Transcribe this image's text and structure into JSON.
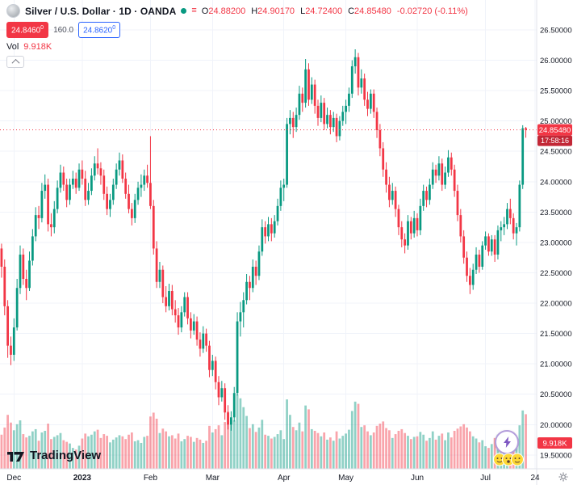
{
  "header": {
    "symbol_title": "Silver / U.S. Dollar · 1D · OANDA",
    "ohlc": {
      "o_label": "O",
      "o": "24.88200",
      "h_label": "H",
      "h": "24.90170",
      "l_label": "L",
      "l": "24.72400",
      "c_label": "C",
      "c": "24.85480",
      "change": "-0.02720 (-0.11%)"
    },
    "sell_price": "24.8460",
    "sell_sup": "0",
    "spread": "160.0",
    "buy_price": "24.8620",
    "buy_sup": "0",
    "vol_label": "Vol",
    "vol_value": "9.918K"
  },
  "footer": {
    "logo_text": "TradingView"
  },
  "colors": {
    "up": "#089981",
    "down": "#f23645",
    "buy_blue": "#2962ff"
  },
  "chart_data": {
    "type": "candlestick",
    "title": "Silver / U.S. Dollar · 1D · OANDA",
    "legend_position": "top-left",
    "grid": true,
    "up_color": "#089981",
    "down_color": "#f23645",
    "y_axis": {
      "min": 19.272,
      "max": 26.992,
      "tick_min": 19.5,
      "tick_max": 26.5,
      "tick_step": 0.5,
      "decimals": 5
    },
    "x_ticks": [
      {
        "label": "Dec",
        "i": 4
      },
      {
        "label": "2023",
        "i": 26,
        "bold": true
      },
      {
        "label": "Feb",
        "i": 48
      },
      {
        "label": "Mar",
        "i": 68
      },
      {
        "label": "Apr",
        "i": 91
      },
      {
        "label": "May",
        "i": 111
      },
      {
        "label": "Jun",
        "i": 134
      },
      {
        "label": "Jul",
        "i": 156
      },
      {
        "label": "24",
        "i": 172
      }
    ],
    "last_price": 24.8548,
    "last_price_label": "24.85480",
    "countdown": "17:58:16",
    "last_volume_label": "9.918K",
    "candles": [
      [
        22.9,
        22.98,
        22.42,
        22.6,
        6.2
      ],
      [
        22.6,
        22.72,
        21.8,
        21.95,
        7.5
      ],
      [
        21.95,
        22.05,
        21.1,
        21.3,
        9.8
      ],
      [
        21.3,
        21.45,
        20.98,
        21.15,
        8.4
      ],
      [
        21.15,
        21.75,
        21.05,
        21.6,
        7.0
      ],
      [
        21.6,
        22.4,
        21.55,
        22.25,
        8.1
      ],
      [
        22.25,
        22.95,
        22.15,
        22.8,
        8.8
      ],
      [
        22.8,
        22.9,
        22.3,
        22.4,
        6.3
      ],
      [
        22.4,
        22.55,
        22.05,
        22.25,
        5.7
      ],
      [
        22.25,
        22.85,
        22.2,
        22.7,
        6.0
      ],
      [
        22.7,
        23.22,
        22.62,
        23.1,
        6.8
      ],
      [
        23.1,
        23.58,
        23.02,
        23.45,
        7.2
      ],
      [
        23.45,
        23.6,
        23.22,
        23.4,
        5.1
      ],
      [
        23.4,
        23.98,
        23.33,
        23.85,
        6.6
      ],
      [
        23.85,
        24.12,
        23.72,
        23.95,
        6.9
      ],
      [
        23.95,
        24.05,
        23.18,
        23.3,
        8.2
      ],
      [
        23.3,
        23.48,
        23.1,
        23.25,
        5.4
      ],
      [
        23.25,
        23.68,
        23.15,
        23.55,
        5.8
      ],
      [
        23.55,
        24.02,
        23.48,
        23.9,
        6.1
      ],
      [
        23.9,
        24.28,
        23.82,
        24.15,
        6.5
      ],
      [
        24.15,
        24.25,
        23.85,
        23.95,
        5.2
      ],
      [
        23.95,
        24.05,
        23.58,
        23.7,
        4.9
      ],
      [
        23.7,
        24.05,
        23.62,
        23.95,
        4.6
      ],
      [
        23.95,
        24.18,
        23.88,
        24.05,
        3.8
      ],
      [
        24.05,
        24.15,
        23.8,
        23.9,
        3.5
      ],
      [
        23.9,
        24.3,
        23.85,
        24.2,
        4.2
      ],
      [
        24.2,
        24.35,
        23.95,
        24.05,
        5.5
      ],
      [
        24.05,
        24.18,
        23.6,
        23.7,
        6.4
      ],
      [
        23.7,
        23.98,
        23.62,
        23.85,
        5.9
      ],
      [
        23.85,
        24.22,
        23.78,
        24.1,
        6.2
      ],
      [
        24.1,
        24.42,
        24.02,
        24.3,
        6.8
      ],
      [
        24.3,
        24.55,
        24.12,
        24.22,
        7.1
      ],
      [
        24.22,
        24.32,
        23.95,
        24.1,
        5.6
      ],
      [
        24.1,
        24.2,
        23.7,
        23.8,
        6.3
      ],
      [
        23.8,
        23.92,
        23.45,
        23.55,
        6.0
      ],
      [
        23.55,
        23.8,
        23.42,
        23.7,
        4.8
      ],
      [
        23.7,
        24.05,
        23.62,
        23.95,
        5.3
      ],
      [
        23.95,
        24.3,
        23.88,
        24.2,
        5.7
      ],
      [
        24.2,
        24.48,
        24.1,
        24.35,
        6.1
      ],
      [
        24.35,
        24.45,
        23.98,
        24.05,
        5.9
      ],
      [
        24.05,
        24.15,
        23.72,
        23.8,
        5.4
      ],
      [
        23.8,
        23.95,
        23.48,
        23.55,
        6.2
      ],
      [
        23.55,
        23.65,
        23.28,
        23.4,
        6.6
      ],
      [
        23.4,
        23.8,
        23.32,
        23.7,
        5.0
      ],
      [
        23.7,
        24.0,
        23.62,
        23.9,
        5.2
      ],
      [
        23.9,
        24.12,
        23.75,
        23.95,
        4.7
      ],
      [
        23.95,
        24.2,
        23.85,
        24.1,
        5.8
      ],
      [
        24.1,
        24.28,
        23.9,
        23.98,
        6.0
      ],
      [
        23.98,
        24.75,
        23.55,
        23.6,
        9.5
      ],
      [
        23.6,
        23.7,
        22.8,
        22.9,
        10.2
      ],
      [
        22.9,
        23.02,
        22.25,
        22.35,
        9.1
      ],
      [
        22.35,
        22.68,
        22.25,
        22.55,
        6.5
      ],
      [
        22.55,
        22.62,
        22.0,
        22.1,
        7.3
      ],
      [
        22.1,
        22.28,
        21.85,
        21.95,
        6.8
      ],
      [
        21.95,
        22.32,
        21.88,
        22.2,
        5.9
      ],
      [
        22.2,
        22.3,
        21.8,
        21.9,
        6.1
      ],
      [
        21.9,
        22.05,
        21.68,
        21.8,
        5.5
      ],
      [
        21.8,
        21.92,
        21.48,
        21.6,
        6.4
      ],
      [
        21.6,
        21.95,
        21.52,
        21.85,
        5.0
      ],
      [
        21.85,
        22.18,
        21.78,
        22.1,
        5.4
      ],
      [
        22.1,
        22.18,
        21.65,
        21.75,
        6.0
      ],
      [
        21.75,
        21.85,
        21.42,
        21.55,
        5.8
      ],
      [
        21.55,
        21.82,
        21.48,
        21.7,
        4.9
      ],
      [
        21.7,
        21.78,
        21.3,
        21.4,
        5.6
      ],
      [
        21.4,
        21.52,
        21.12,
        21.25,
        5.3
      ],
      [
        21.25,
        21.62,
        21.18,
        21.5,
        4.7
      ],
      [
        21.5,
        21.58,
        21.2,
        21.3,
        5.1
      ],
      [
        21.3,
        21.38,
        20.78,
        20.9,
        7.8
      ],
      [
        20.9,
        21.15,
        20.8,
        21.05,
        6.6
      ],
      [
        21.05,
        21.12,
        20.58,
        20.7,
        7.2
      ],
      [
        20.7,
        20.8,
        20.32,
        20.45,
        7.9
      ],
      [
        20.45,
        20.72,
        20.38,
        20.6,
        6.1
      ],
      [
        20.6,
        20.68,
        20.08,
        20.2,
        8.5
      ],
      [
        20.2,
        20.32,
        19.92,
        20.0,
        10.4
      ],
      [
        20.0,
        20.22,
        19.9,
        20.12,
        9.0
      ],
      [
        20.12,
        20.62,
        20.05,
        20.52,
        8.8
      ],
      [
        20.52,
        21.85,
        20.48,
        21.7,
        13.5
      ],
      [
        21.7,
        22.02,
        21.45,
        21.85,
        12.8
      ],
      [
        21.85,
        22.18,
        21.6,
        22.05,
        11.2
      ],
      [
        22.05,
        22.48,
        21.98,
        22.35,
        9.6
      ],
      [
        22.35,
        22.45,
        22.05,
        22.25,
        7.4
      ],
      [
        22.25,
        22.72,
        22.18,
        22.6,
        8.1
      ],
      [
        22.6,
        22.7,
        22.3,
        22.45,
        6.7
      ],
      [
        22.45,
        22.95,
        22.38,
        22.85,
        7.5
      ],
      [
        22.85,
        23.38,
        22.78,
        23.25,
        8.9
      ],
      [
        23.25,
        23.35,
        22.98,
        23.1,
        6.2
      ],
      [
        23.1,
        23.42,
        23.02,
        23.3,
        6.0
      ],
      [
        23.3,
        23.4,
        23.02,
        23.15,
        5.5
      ],
      [
        23.15,
        23.45,
        23.08,
        23.35,
        5.8
      ],
      [
        23.35,
        23.72,
        23.28,
        23.6,
        6.3
      ],
      [
        23.6,
        24.02,
        23.52,
        23.9,
        7.0
      ],
      [
        23.9,
        24.05,
        23.68,
        23.95,
        5.4
      ],
      [
        23.95,
        25.05,
        23.9,
        24.95,
        12.6
      ],
      [
        24.95,
        25.18,
        24.78,
        25.05,
        9.8
      ],
      [
        25.05,
        25.15,
        24.72,
        24.9,
        7.6
      ],
      [
        24.9,
        25.22,
        24.82,
        25.1,
        7.0
      ],
      [
        25.1,
        25.58,
        25.02,
        25.45,
        8.4
      ],
      [
        25.45,
        25.55,
        25.15,
        25.3,
        6.8
      ],
      [
        25.3,
        26.02,
        25.22,
        25.85,
        11.5
      ],
      [
        25.85,
        25.95,
        25.25,
        25.35,
        10.8
      ],
      [
        25.35,
        25.72,
        25.28,
        25.6,
        7.2
      ],
      [
        25.6,
        25.68,
        25.12,
        25.25,
        6.9
      ],
      [
        25.25,
        25.35,
        24.92,
        25.05,
        6.5
      ],
      [
        25.05,
        25.42,
        24.98,
        25.3,
        5.9
      ],
      [
        25.3,
        25.38,
        24.85,
        24.95,
        6.6
      ],
      [
        24.95,
        25.22,
        24.88,
        25.1,
        5.3
      ],
      [
        25.1,
        25.18,
        24.78,
        24.9,
        5.7
      ],
      [
        24.9,
        25.15,
        24.82,
        25.05,
        5.1
      ],
      [
        25.05,
        25.12,
        24.65,
        24.75,
        6.8
      ],
      [
        24.75,
        25.08,
        24.68,
        25.0,
        5.5
      ],
      [
        25.0,
        25.25,
        24.92,
        25.15,
        6.0
      ],
      [
        25.15,
        25.35,
        24.95,
        25.25,
        6.4
      ],
      [
        25.25,
        25.55,
        25.15,
        25.45,
        7.1
      ],
      [
        25.45,
        26.0,
        25.38,
        25.9,
        10.5
      ],
      [
        25.9,
        26.18,
        25.78,
        26.05,
        12.2
      ],
      [
        26.05,
        26.12,
        25.42,
        25.55,
        11.8
      ],
      [
        25.55,
        25.85,
        25.45,
        25.7,
        7.6
      ],
      [
        25.7,
        25.78,
        25.25,
        25.35,
        7.9
      ],
      [
        25.35,
        25.48,
        25.08,
        25.2,
        6.8
      ],
      [
        25.2,
        25.52,
        25.12,
        25.45,
        6.1
      ],
      [
        25.45,
        25.52,
        25.05,
        25.15,
        6.6
      ],
      [
        25.15,
        25.22,
        24.72,
        24.85,
        7.8
      ],
      [
        24.85,
        24.95,
        24.42,
        24.55,
        8.2
      ],
      [
        24.55,
        24.65,
        24.08,
        24.2,
        8.6
      ],
      [
        24.2,
        24.32,
        23.82,
        23.95,
        7.4
      ],
      [
        23.95,
        24.08,
        23.58,
        23.7,
        7.0
      ],
      [
        23.7,
        23.98,
        23.62,
        23.85,
        5.6
      ],
      [
        23.85,
        23.92,
        23.42,
        23.55,
        6.3
      ],
      [
        23.55,
        23.62,
        23.12,
        23.25,
        6.9
      ],
      [
        23.25,
        23.35,
        22.92,
        23.05,
        7.2
      ],
      [
        23.05,
        23.15,
        22.82,
        22.95,
        6.5
      ],
      [
        22.95,
        23.45,
        22.88,
        23.35,
        6.0
      ],
      [
        23.35,
        23.42,
        23.05,
        23.15,
        5.4
      ],
      [
        23.15,
        23.52,
        23.08,
        23.4,
        5.8
      ],
      [
        23.4,
        23.48,
        23.1,
        23.2,
        5.9
      ],
      [
        23.2,
        23.72,
        23.12,
        23.6,
        6.7
      ],
      [
        23.6,
        23.95,
        23.52,
        23.85,
        6.2
      ],
      [
        23.85,
        23.92,
        23.58,
        23.7,
        5.1
      ],
      [
        23.7,
        24.05,
        23.62,
        23.95,
        5.6
      ],
      [
        23.95,
        24.32,
        23.88,
        24.2,
        6.8
      ],
      [
        24.2,
        24.28,
        23.98,
        24.1,
        5.3
      ],
      [
        24.1,
        24.42,
        24.02,
        24.3,
        6.0
      ],
      [
        24.3,
        24.38,
        23.85,
        23.95,
        6.4
      ],
      [
        23.95,
        24.25,
        23.88,
        24.15,
        5.2
      ],
      [
        24.15,
        24.52,
        24.08,
        24.4,
        6.6
      ],
      [
        24.4,
        24.48,
        24.1,
        24.2,
        5.7
      ],
      [
        24.2,
        24.28,
        23.75,
        23.85,
        6.9
      ],
      [
        23.85,
        23.95,
        23.35,
        23.45,
        7.3
      ],
      [
        23.45,
        23.55,
        23.0,
        23.1,
        7.7
      ],
      [
        23.1,
        23.2,
        22.65,
        22.75,
        8.1
      ],
      [
        22.75,
        22.85,
        22.35,
        22.45,
        7.5
      ],
      [
        22.45,
        22.58,
        22.15,
        22.3,
        6.8
      ],
      [
        22.3,
        22.65,
        22.22,
        22.55,
        5.9
      ],
      [
        22.55,
        22.92,
        22.48,
        22.8,
        5.5
      ],
      [
        22.8,
        22.88,
        22.5,
        22.6,
        4.8
      ],
      [
        22.6,
        23.02,
        22.55,
        22.95,
        5.2
      ],
      [
        22.95,
        23.18,
        22.88,
        23.1,
        4.1
      ],
      [
        23.1,
        23.15,
        22.78,
        22.85,
        3.8
      ],
      [
        22.85,
        23.12,
        22.78,
        23.05,
        4.5
      ],
      [
        23.05,
        23.12,
        22.68,
        22.8,
        5.6
      ],
      [
        22.8,
        23.28,
        22.72,
        23.2,
        6.2
      ],
      [
        23.2,
        23.35,
        23.02,
        23.25,
        4.9
      ],
      [
        23.25,
        23.42,
        23.12,
        23.3,
        4.6
      ],
      [
        23.3,
        23.65,
        23.22,
        23.55,
        6.0
      ],
      [
        23.55,
        23.72,
        23.3,
        23.4,
        5.2
      ],
      [
        23.4,
        23.48,
        23.05,
        23.15,
        5.8
      ],
      [
        23.15,
        23.32,
        22.95,
        23.25,
        4.4
      ],
      [
        23.25,
        24.02,
        23.18,
        23.95,
        7.9
      ],
      [
        23.95,
        24.93,
        23.88,
        24.88,
        10.6
      ],
      [
        24.882,
        24.9017,
        24.724,
        24.8548,
        9.918
      ]
    ]
  }
}
